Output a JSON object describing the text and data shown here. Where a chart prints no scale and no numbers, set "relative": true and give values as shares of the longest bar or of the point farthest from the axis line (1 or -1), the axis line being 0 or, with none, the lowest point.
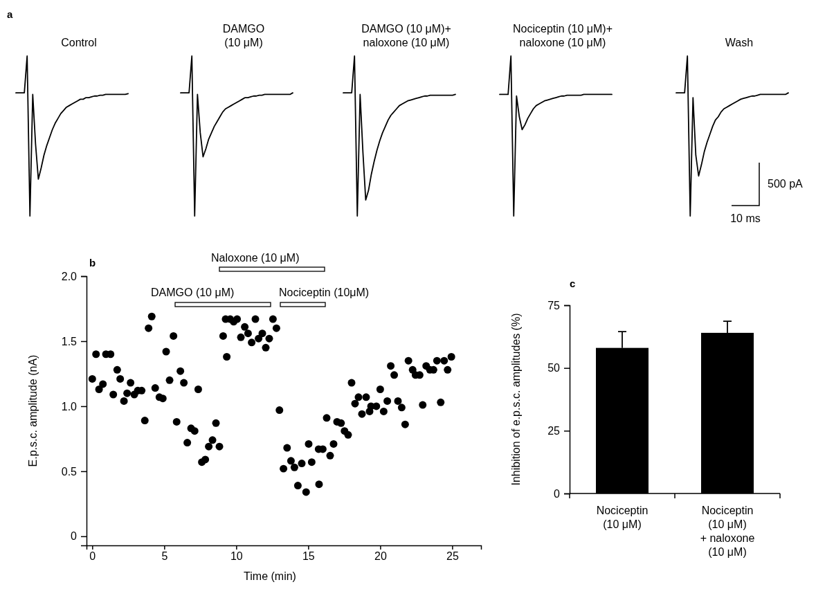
{
  "chart_data": [
    {
      "type": "line",
      "title": "Control",
      "relative": true,
      "color": "#000000",
      "annotations": [
        "a"
      ],
      "categories": [
        null,
        null,
        null,
        null,
        null,
        null,
        null,
        null,
        null,
        null,
        null,
        null,
        null,
        null,
        null,
        null,
        null,
        null,
        null,
        null,
        null,
        null,
        null,
        null,
        null,
        null,
        null,
        null,
        null,
        null,
        null,
        null,
        null,
        null,
        null,
        null,
        null,
        null,
        null,
        null,
        null
      ],
      "values": [
        0.77,
        0.77,
        0.77,
        0.77,
        1,
        0,
        0.76,
        0.45,
        0.23,
        0.3,
        0.38,
        0.44,
        0.49,
        0.54,
        0.58,
        0.61,
        0.64,
        0.66,
        0.68,
        0.69,
        0.7,
        0.71,
        0.72,
        0.73,
        0.73,
        0.74,
        0.74,
        0.745,
        0.75,
        0.75,
        0.755,
        0.755,
        0.76,
        0.76,
        0.76,
        0.76,
        0.76,
        0.76,
        0.76,
        0.76,
        0.765
      ]
    },
    {
      "type": "line",
      "title": "DAMGO (10 μM)",
      "relative": true,
      "color": "#000000",
      "categories": [
        null,
        null,
        null,
        null,
        null,
        null,
        null,
        null,
        null,
        null,
        null,
        null,
        null,
        null,
        null,
        null,
        null,
        null,
        null,
        null,
        null,
        null,
        null,
        null,
        null,
        null,
        null,
        null,
        null,
        null,
        null,
        null,
        null,
        null,
        null,
        null,
        null,
        null,
        null,
        null,
        null
      ],
      "values": [
        0.77,
        0.77,
        0.77,
        0.77,
        1,
        0,
        0.76,
        0.52,
        0.37,
        0.42,
        0.48,
        0.52,
        0.56,
        0.59,
        0.62,
        0.65,
        0.67,
        0.68,
        0.69,
        0.7,
        0.71,
        0.72,
        0.73,
        0.74,
        0.74,
        0.745,
        0.75,
        0.75,
        0.755,
        0.755,
        0.76,
        0.76,
        0.76,
        0.76,
        0.76,
        0.76,
        0.76,
        0.76,
        0.76,
        0.76,
        0.77
      ]
    },
    {
      "type": "line",
      "title": "DAMGO (10 μM)+ naloxone (10 μM)",
      "relative": true,
      "color": "#000000",
      "categories": [
        null,
        null,
        null,
        null,
        null,
        null,
        null,
        null,
        null,
        null,
        null,
        null,
        null,
        null,
        null,
        null,
        null,
        null,
        null,
        null,
        null,
        null,
        null,
        null,
        null,
        null,
        null,
        null,
        null,
        null,
        null,
        null,
        null,
        null,
        null,
        null,
        null,
        null,
        null,
        null,
        null
      ],
      "values": [
        0.77,
        0.77,
        0.77,
        0.77,
        1,
        0,
        0.76,
        0.4,
        0.1,
        0.16,
        0.26,
        0.34,
        0.41,
        0.47,
        0.52,
        0.56,
        0.6,
        0.63,
        0.65,
        0.67,
        0.69,
        0.7,
        0.71,
        0.72,
        0.725,
        0.73,
        0.735,
        0.74,
        0.745,
        0.75,
        0.75,
        0.755,
        0.755,
        0.755,
        0.755,
        0.755,
        0.755,
        0.755,
        0.755,
        0.755,
        0.76
      ]
    },
    {
      "type": "line",
      "title": "Nociceptin (10 μM)+ naloxone (10 μM)",
      "relative": true,
      "color": "#000000",
      "categories": [
        null,
        null,
        null,
        null,
        null,
        null,
        null,
        null,
        null,
        null,
        null,
        null,
        null,
        null,
        null,
        null,
        null,
        null,
        null,
        null,
        null,
        null,
        null,
        null,
        null,
        null,
        null,
        null,
        null,
        null,
        null,
        null,
        null,
        null,
        null,
        null,
        null,
        null,
        null,
        null,
        null
      ],
      "values": [
        0.76,
        0.76,
        0.76,
        0.76,
        1,
        0,
        0.75,
        0.62,
        0.54,
        0.57,
        0.61,
        0.64,
        0.67,
        0.69,
        0.7,
        0.71,
        0.72,
        0.725,
        0.73,
        0.735,
        0.74,
        0.745,
        0.75,
        0.75,
        0.755,
        0.755,
        0.755,
        0.755,
        0.755,
        0.755,
        0.76,
        0.76,
        0.76,
        0.76,
        0.76,
        0.76,
        0.76,
        0.76,
        0.76,
        0.76,
        0.76
      ]
    },
    {
      "type": "line",
      "title": "Wash",
      "relative": true,
      "color": "#000000",
      "annotations": [
        "500 pA",
        "10 ms"
      ],
      "categories": [
        null,
        null,
        null,
        null,
        null,
        null,
        null,
        null,
        null,
        null,
        null,
        null,
        null,
        null,
        null,
        null,
        null,
        null,
        null,
        null,
        null,
        null,
        null,
        null,
        null,
        null,
        null,
        null,
        null,
        null,
        null,
        null,
        null,
        null,
        null,
        null,
        null,
        null,
        null,
        null,
        null
      ],
      "values": [
        0.77,
        0.77,
        0.77,
        0.77,
        1,
        0,
        0.74,
        0.38,
        0.25,
        0.32,
        0.4,
        0.46,
        0.51,
        0.56,
        0.6,
        0.62,
        0.65,
        0.67,
        0.68,
        0.69,
        0.7,
        0.71,
        0.72,
        0.73,
        0.735,
        0.74,
        0.745,
        0.75,
        0.75,
        0.755,
        0.76,
        0.76,
        0.76,
        0.76,
        0.76,
        0.76,
        0.76,
        0.76,
        0.76,
        0.76,
        0.77
      ]
    },
    {
      "type": "scatter",
      "xlabel": "Time (min)",
      "ylabel": "E.p.s.c. amplitude (nA)",
      "annotations": [
        "b",
        "DAMGO (10 μM)",
        "Naloxone (10 μM)",
        "Nociceptin (10μM)"
      ],
      "marker": "circle",
      "color": "#000000",
      "xlim": [
        -0.4,
        27
      ],
      "ylim": [
        -0.07,
        2
      ],
      "xticks": [
        0,
        5,
        10,
        15,
        20,
        25
      ],
      "yticks": [
        0,
        0.5,
        {
          "value": 1,
          "label": "1.0"
        },
        1.5,
        {
          "value": 2,
          "label": "2.0"
        }
      ],
      "x": [
        0,
        0.26,
        0.47,
        0.74,
        0.95,
        1.27,
        1.46,
        1.73,
        1.94,
        2.2,
        2.42,
        2.66,
        2.92,
        3.16,
        3.43,
        3.65,
        3.91,
        4.13,
        4.37,
        4.66,
        4.9,
        5.13,
        5.37,
        5.64,
        5.86,
        6.12,
        6.36,
        6.6,
        6.86,
        7.11,
        7.36,
        7.61,
        7.85,
        8.09,
        8.35,
        8.59,
        8.83,
        9.09,
        9.26,
        9.34,
        9.58,
        9.82,
        10.06,
        10.32,
        10.59,
        10.82,
        11.07,
        11.33,
        11.55,
        11.81,
        12.05,
        12.29,
        12.55,
        12.79,
        13,
        13.28,
        13.53,
        13.8,
        14.04,
        14.28,
        14.55,
        14.85,
        15.03,
        15.24,
        15.72,
        15.75,
        16.01,
        16.28,
        16.52,
        16.76,
        17,
        17.28,
        17.52,
        17.77,
        18.01,
        18.25,
        18.49,
        18.73,
        19.02,
        19.26,
        19.36,
        19.73,
        20,
        20.24,
        20.49,
        20.73,
        20.97,
        21.23,
        21.49,
        21.73,
        21.96,
        22.25,
        22.45,
        22.74,
        22.95,
        23.19,
        23.45,
        23.7,
        23.94,
        24.2,
        24.44,
        24.68,
        24.94
      ],
      "values": [
        1.21,
        1.4,
        1.13,
        1.17,
        1.4,
        1.4,
        1.09,
        1.28,
        1.21,
        1.04,
        1.1,
        1.18,
        1.09,
        1.12,
        1.12,
        0.89,
        1.6,
        1.69,
        1.14,
        1.07,
        1.06,
        1.42,
        1.2,
        1.54,
        0.88,
        1.27,
        1.18,
        0.72,
        0.83,
        0.81,
        1.13,
        0.57,
        0.59,
        0.69,
        0.74,
        0.87,
        0.69,
        1.54,
        1.67,
        1.38,
        1.67,
        1.65,
        1.67,
        1.53,
        1.61,
        1.56,
        1.49,
        1.67,
        1.52,
        1.56,
        1.45,
        1.52,
        1.67,
        1.6,
        0.97,
        0.52,
        0.68,
        0.58,
        0.53,
        0.39,
        0.56,
        0.34,
        0.71,
        0.57,
        0.67,
        0.4,
        0.67,
        0.91,
        0.62,
        0.71,
        0.88,
        0.87,
        0.81,
        0.78,
        1.18,
        1.02,
        1.07,
        0.94,
        1.07,
        0.96,
        1,
        1,
        1.13,
        0.96,
        1.04,
        1.31,
        1.24,
        1.04,
        0.99,
        0.86,
        1.35,
        1.28,
        1.24,
        1.24,
        1.01,
        1.31,
        1.28,
        1.28,
        1.35,
        1.03,
        1.35,
        1.28,
        1.38
      ]
    },
    {
      "type": "bar",
      "ylabel": "Inhibition of e.p.s.c. amplitudes (%)",
      "annotations": [
        "c"
      ],
      "color": "#000000",
      "categories": [
        "Nociceptin (10 μM)",
        "Nociceptin (10 μM) + naloxone (10 μM)"
      ],
      "values": [
        58,
        64
      ],
      "errors": [
        6.5,
        4.6
      ],
      "ylim": [
        0,
        75
      ],
      "yticks": [
        0,
        25,
        50,
        75
      ]
    }
  ]
}
